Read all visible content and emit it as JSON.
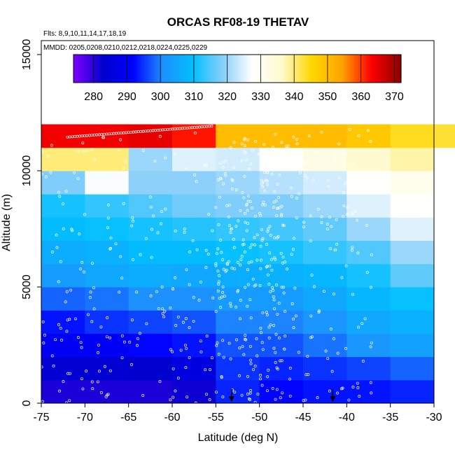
{
  "chart_data": {
    "type": "heatmap",
    "title": "ORCAS RF08-19 THETAV",
    "notes": [
      "Flts: 8,9,10,11,14,17,18,19",
      "MMDD: 0205,0208,0210,0212,0218,0224,0225,0229"
    ],
    "xlabel": "Latitude (deg N)",
    "ylabel": "Altitude (m)",
    "xlim": [
      -75,
      -30
    ],
    "ylim": [
      0,
      15600
    ],
    "x_ticks": [
      "-75",
      "-70",
      "-65",
      "-60",
      "-55",
      "-50",
      "-45",
      "-40",
      "-35",
      "-30"
    ],
    "y_ticks": [
      "0",
      "5000",
      "10000",
      "15000"
    ],
    "colorbar": {
      "range": [
        274,
        372
      ],
      "ticks": [
        "280",
        "290",
        "300",
        "310",
        "320",
        "330",
        "340",
        "350",
        "360",
        "370"
      ],
      "colors": [
        "#7f00ff",
        "#0000cd",
        "#0000ff",
        "#1e90ff",
        "#00bfff",
        "#87cefa",
        "#ffffff",
        "#fffacd",
        "#ffd700",
        "#ffa500",
        "#ff0000",
        "#8b0000"
      ]
    },
    "grid": false,
    "legend": "colorbar top",
    "lat_bins": [
      -75,
      -70,
      -65,
      -60,
      -55,
      -50,
      -45,
      -40,
      -35,
      -30
    ],
    "alt_bins": [
      0,
      1000,
      2000,
      3000,
      4000,
      5000,
      6000,
      7000,
      8000,
      9000,
      10000,
      11000,
      12000
    ],
    "cells": [
      [
        281,
        281,
        281,
        282,
        294,
        292,
        293,
        293,
        294,
        null
      ],
      [
        284,
        284,
        283,
        286,
        295,
        294,
        295,
        296,
        298,
        null
      ],
      [
        290,
        290,
        292,
        293,
        297,
        297,
        299,
        302,
        304,
        null
      ],
      [
        293,
        295,
        296,
        297,
        300,
        300,
        302,
        305,
        307,
        null
      ],
      [
        298,
        299,
        301,
        301,
        303,
        303,
        305,
        308,
        310,
        null
      ],
      [
        303,
        305,
        306,
        305,
        306,
        307,
        308,
        311,
        316,
        null
      ],
      [
        306,
        307,
        309,
        309,
        310,
        311,
        313,
        315,
        320,
        null
      ],
      [
        309,
        310,
        311,
        312,
        313,
        314,
        316,
        320,
        325,
        null
      ],
      [
        311,
        313,
        315,
        317,
        318,
        318,
        320,
        325,
        328,
        null
      ],
      [
        318,
        327,
        319,
        319,
        320,
        322,
        324,
        328,
        331,
        null
      ],
      [
        340,
        340,
        320,
        325,
        324,
        328,
        332,
        336,
        338,
        null
      ],
      [
        364,
        364,
        365,
        362,
        350,
        350,
        350,
        348,
        344,
        343
      ]
    ],
    "arrows": [
      {
        "lat": -53.2,
        "alt": 0
      },
      {
        "lat": -41.6,
        "alt": 0
      }
    ]
  }
}
